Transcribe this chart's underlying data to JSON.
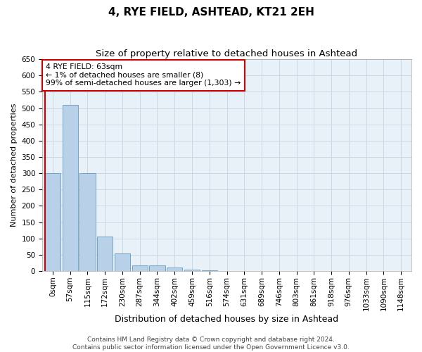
{
  "title": "4, RYE FIELD, ASHTEAD, KT21 2EH",
  "subtitle": "Size of property relative to detached houses in Ashtead",
  "xlabel": "Distribution of detached houses by size in Ashtead",
  "ylabel": "Number of detached properties",
  "bar_labels": [
    "0sqm",
    "57sqm",
    "115sqm",
    "172sqm",
    "230sqm",
    "287sqm",
    "344sqm",
    "402sqm",
    "459sqm",
    "516sqm",
    "574sqm",
    "631sqm",
    "689sqm",
    "746sqm",
    "803sqm",
    "861sqm",
    "918sqm",
    "976sqm",
    "1033sqm",
    "1090sqm",
    "1148sqm"
  ],
  "bar_values": [
    300,
    510,
    300,
    105,
    55,
    18,
    18,
    10,
    5,
    3,
    1,
    0,
    0,
    0,
    0,
    0,
    0,
    1,
    0,
    0,
    1
  ],
  "bar_color": "#b8d0e8",
  "bar_edge_color": "#6699bb",
  "marker_color": "#cc0000",
  "annotation_text": "4 RYE FIELD: 63sqm\n← 1% of detached houses are smaller (8)\n99% of semi-detached houses are larger (1,303) →",
  "annotation_box_color": "#cc0000",
  "ylim": [
    0,
    650
  ],
  "yticks": [
    0,
    50,
    100,
    150,
    200,
    250,
    300,
    350,
    400,
    450,
    500,
    550,
    600,
    650
  ],
  "grid_color": "#c8d8e8",
  "bg_color": "#e8f0f8",
  "footer": "Contains HM Land Registry data © Crown copyright and database right 2024.\nContains public sector information licensed under the Open Government Licence v3.0.",
  "title_fontsize": 11,
  "subtitle_fontsize": 9.5,
  "xlabel_fontsize": 9,
  "ylabel_fontsize": 8,
  "tick_fontsize": 7.5,
  "footer_fontsize": 6.5
}
